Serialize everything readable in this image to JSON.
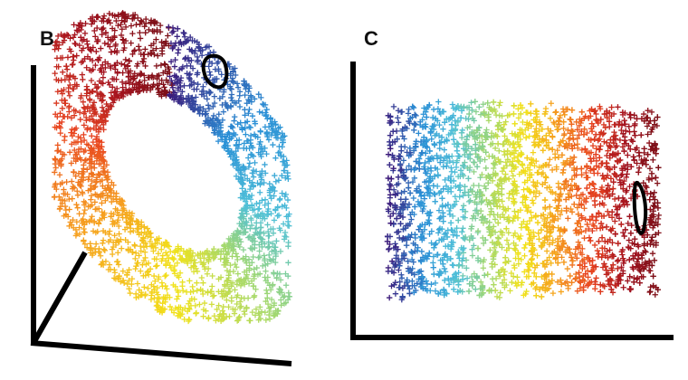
{
  "figure": {
    "panels": [
      {
        "id": "B",
        "letter": "B",
        "kind": "3d-torus-scatter"
      },
      {
        "id": "C",
        "letter": "C",
        "kind": "2d-sheet-scatter"
      }
    ],
    "marker": "plus-cross",
    "colormap": [
      "#3b1a7a",
      "#2a8fd6",
      "#4fc0d8",
      "#a6d96a",
      "#f2e21a",
      "#f6a01e",
      "#e8421f",
      "#a4121e",
      "#7a0f17"
    ]
  }
}
